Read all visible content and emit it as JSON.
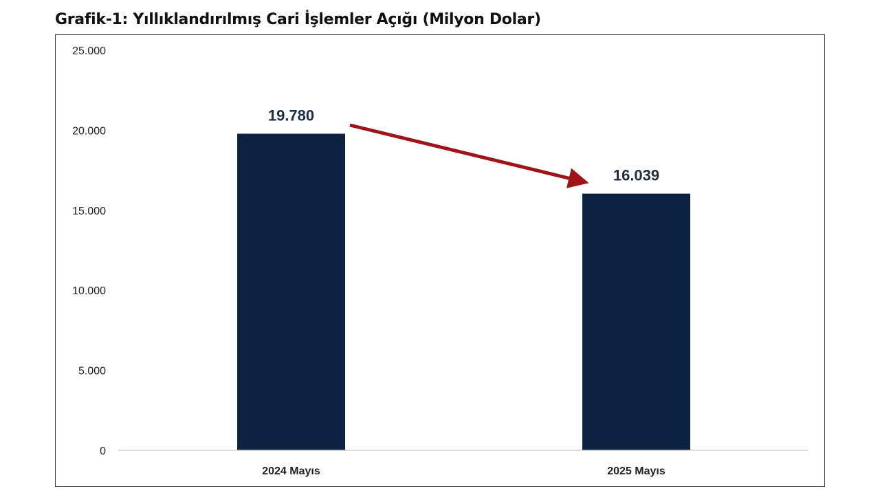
{
  "chart_data": {
    "type": "bar",
    "title": "Grafik-1: Yıllıklandırılmış Cari İşlemler Açığı (Milyon Dolar)",
    "categories": [
      "2024 Mayıs",
      "2025 Mayıs"
    ],
    "values": [
      19780,
      16039
    ],
    "data_labels": [
      "19.780",
      "16.039"
    ],
    "ylim": [
      0,
      25000
    ],
    "yticks": [
      0,
      5000,
      10000,
      15000,
      20000,
      25000
    ],
    "ytick_labels": [
      "0",
      "5.000",
      "10.000",
      "15.000",
      "20.000",
      "25.000"
    ],
    "xlabel": "",
    "ylabel": "",
    "grid": false,
    "legend": "none",
    "annotation": {
      "type": "arrow",
      "from_category": "2024 Mayıs",
      "to_category": "2025 Mayıs",
      "color": "#a01419"
    },
    "colors": {
      "bar": "#0d2240",
      "arrow": "#a01419",
      "axis": "#cfcfcf",
      "label_text": "#1d2b45",
      "tick_text": "#222222"
    }
  }
}
